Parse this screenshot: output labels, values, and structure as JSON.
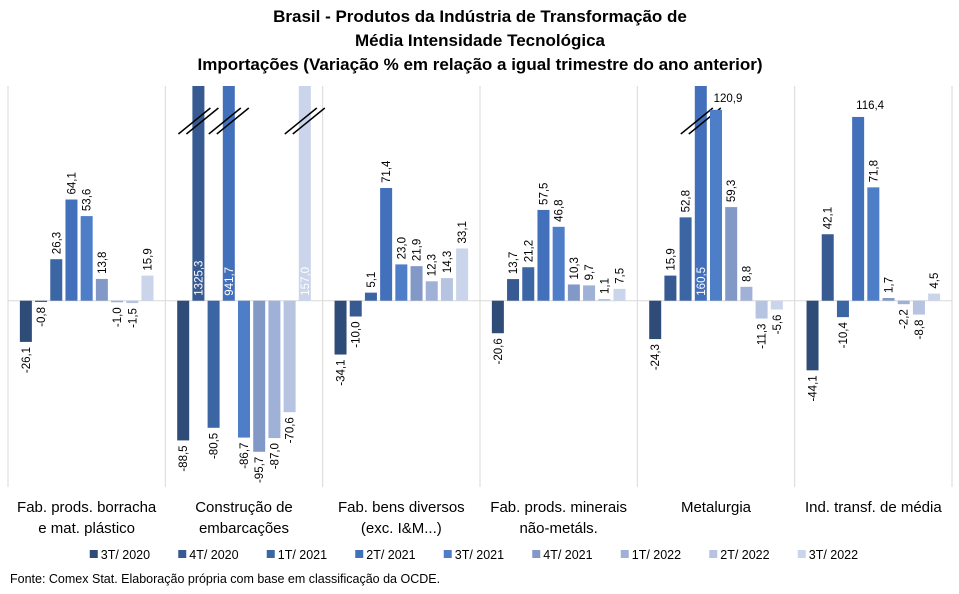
{
  "chart_data": {
    "type": "bar",
    "title": [
      "Brasil - Produtos da Indústria de Transformação de",
      "Média Intensidade Tecnológica",
      "Importações (Variação % em relação a igual trimestre do ano anterior)"
    ],
    "source": "Fonte: Comex Stat. Elaboração própria com base em classificação da OCDE.",
    "categories": [
      "Fab. prods. borracha e mat. plástico",
      "Construção de embarcações",
      "Fab. bens diversos (exc. I&M...)",
      "Fab. prods. minerais não-metáls.",
      "Metalurgia",
      "Ind. transf. de média"
    ],
    "ylim": [
      -118,
      136
    ],
    "series": [
      {
        "name": "3T/ 2020",
        "color": "#2f4b78",
        "values": [
          -26.1,
          -88.5,
          -34.1,
          -20.6,
          -24.3,
          -44.1
        ],
        "value_labels": [
          "-26,1",
          "-88,5",
          "-34,1",
          "-20,6",
          "-24,3",
          "-44,1"
        ]
      },
      {
        "name": "4T/ 2020",
        "color": "#365a91",
        "values": [
          -0.8,
          1325.3,
          -10.0,
          13.7,
          15.9,
          42.1
        ],
        "value_labels": [
          "-0,8",
          "1325,3",
          "-10,0",
          "13,7",
          "15,9",
          "42,1"
        ]
      },
      {
        "name": "1T/ 2021",
        "color": "#3c65a4",
        "values": [
          26.3,
          -80.5,
          5.1,
          21.2,
          52.8,
          -10.4
        ],
        "value_labels": [
          "26,3",
          "-80,5",
          "5,1",
          "21,2",
          "52,8",
          "-10,4"
        ]
      },
      {
        "name": "2T/ 2021",
        "color": "#4270bb",
        "values": [
          64.1,
          941.7,
          71.4,
          57.5,
          160.5,
          116.4
        ],
        "value_labels": [
          "64,1",
          "941,7",
          "71,4",
          "57,5",
          "160,5",
          "116,4"
        ]
      },
      {
        "name": "3T/ 2021",
        "color": "#4e7ec8",
        "values": [
          53.6,
          -86.7,
          23.0,
          46.8,
          120.9,
          71.8
        ],
        "value_labels": [
          "53,6",
          "-86,7",
          "23,0",
          "46,8",
          "120,9",
          "71,8"
        ]
      },
      {
        "name": "4T/ 2021",
        "color": "#8299c8",
        "values": [
          13.8,
          -95.7,
          21.9,
          10.3,
          59.3,
          1.7
        ],
        "value_labels": [
          "13,8",
          "-95,7",
          "21,9",
          "10,3",
          "59,3",
          "1,7"
        ]
      },
      {
        "name": "1T/ 2022",
        "color": "#9fb1d7",
        "values": [
          -1.0,
          -87.0,
          12.3,
          9.7,
          8.8,
          -2.2
        ],
        "value_labels": [
          "-1,0",
          "-87,0",
          "12,3",
          "9,7",
          "8,8",
          "-2,2"
        ]
      },
      {
        "name": "2T/ 2022",
        "color": "#b6c4e1",
        "values": [
          -1.5,
          -70.6,
          14.3,
          1.1,
          -11.3,
          -8.8
        ],
        "value_labels": [
          "-1,5",
          "-70,6",
          "14,3",
          "1,1",
          "-11,3",
          "-8,8"
        ]
      },
      {
        "name": "3T/ 2022",
        "color": "#cad4ea",
        "values": [
          15.9,
          157.0,
          33.1,
          7.5,
          -5.6,
          4.5
        ],
        "value_labels": [
          "15,9",
          "157,0",
          "33,1",
          "7,5",
          "-5,6",
          "4,5"
        ]
      }
    ]
  }
}
